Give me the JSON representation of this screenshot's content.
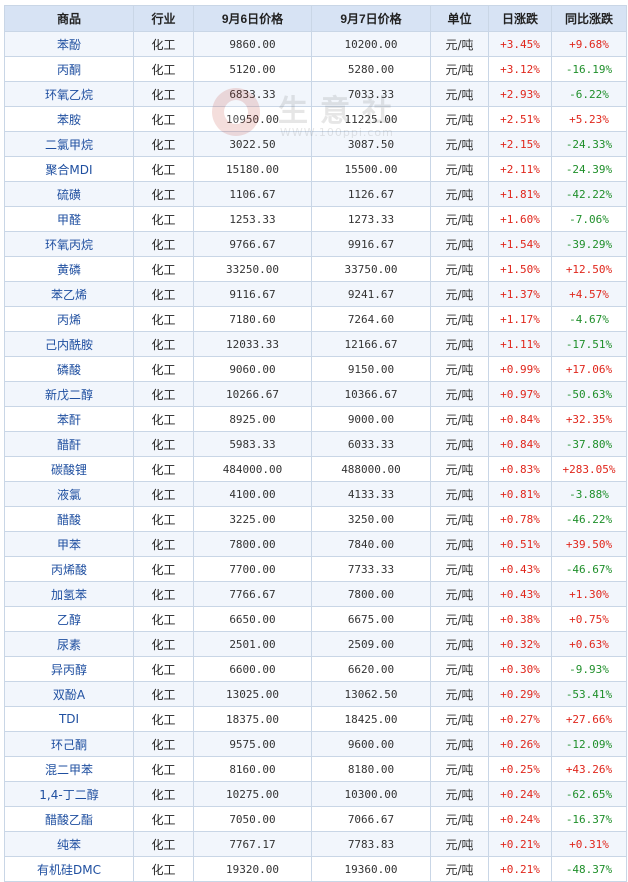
{
  "header": {
    "product": "商品",
    "industry": "行业",
    "price_sep6": "9月6日价格",
    "price_sep7": "9月7日价格",
    "unit": "单位",
    "daily_change": "日涨跌",
    "yoy_change": "同比涨跌"
  },
  "watermark": {
    "text": "生意社",
    "url": "WWW.100ppi.com"
  },
  "colors": {
    "rise": "#e0261b",
    "fall": "#1f8f2a",
    "name": "#1f4fa0"
  },
  "rows": [
    {
      "name": "苯酚",
      "industry": "化工",
      "p6": "9860.00",
      "p7": "10200.00",
      "unit": "元/吨",
      "day": "+3.45%",
      "yoy": "+9.68%"
    },
    {
      "name": "丙酮",
      "industry": "化工",
      "p6": "5120.00",
      "p7": "5280.00",
      "unit": "元/吨",
      "day": "+3.12%",
      "yoy": "-16.19%"
    },
    {
      "name": "环氧乙烷",
      "industry": "化工",
      "p6": "6833.33",
      "p7": "7033.33",
      "unit": "元/吨",
      "day": "+2.93%",
      "yoy": "-6.22%"
    },
    {
      "name": "苯胺",
      "industry": "化工",
      "p6": "10950.00",
      "p7": "11225.00",
      "unit": "元/吨",
      "day": "+2.51%",
      "yoy": "+5.23%"
    },
    {
      "name": "二氯甲烷",
      "industry": "化工",
      "p6": "3022.50",
      "p7": "3087.50",
      "unit": "元/吨",
      "day": "+2.15%",
      "yoy": "-24.33%"
    },
    {
      "name": "聚合MDI",
      "industry": "化工",
      "p6": "15180.00",
      "p7": "15500.00",
      "unit": "元/吨",
      "day": "+2.11%",
      "yoy": "-24.39%"
    },
    {
      "name": "硫磺",
      "industry": "化工",
      "p6": "1106.67",
      "p7": "1126.67",
      "unit": "元/吨",
      "day": "+1.81%",
      "yoy": "-42.22%"
    },
    {
      "name": "甲醛",
      "industry": "化工",
      "p6": "1253.33",
      "p7": "1273.33",
      "unit": "元/吨",
      "day": "+1.60%",
      "yoy": "-7.06%"
    },
    {
      "name": "环氧丙烷",
      "industry": "化工",
      "p6": "9766.67",
      "p7": "9916.67",
      "unit": "元/吨",
      "day": "+1.54%",
      "yoy": "-39.29%"
    },
    {
      "name": "黄磷",
      "industry": "化工",
      "p6": "33250.00",
      "p7": "33750.00",
      "unit": "元/吨",
      "day": "+1.50%",
      "yoy": "+12.50%"
    },
    {
      "name": "苯乙烯",
      "industry": "化工",
      "p6": "9116.67",
      "p7": "9241.67",
      "unit": "元/吨",
      "day": "+1.37%",
      "yoy": "+4.57%"
    },
    {
      "name": "丙烯",
      "industry": "化工",
      "p6": "7180.60",
      "p7": "7264.60",
      "unit": "元/吨",
      "day": "+1.17%",
      "yoy": "-4.67%"
    },
    {
      "name": "己内酰胺",
      "industry": "化工",
      "p6": "12033.33",
      "p7": "12166.67",
      "unit": "元/吨",
      "day": "+1.11%",
      "yoy": "-17.51%"
    },
    {
      "name": "磷酸",
      "industry": "化工",
      "p6": "9060.00",
      "p7": "9150.00",
      "unit": "元/吨",
      "day": "+0.99%",
      "yoy": "+17.06%"
    },
    {
      "name": "新戊二醇",
      "industry": "化工",
      "p6": "10266.67",
      "p7": "10366.67",
      "unit": "元/吨",
      "day": "+0.97%",
      "yoy": "-50.63%"
    },
    {
      "name": "苯酐",
      "industry": "化工",
      "p6": "8925.00",
      "p7": "9000.00",
      "unit": "元/吨",
      "day": "+0.84%",
      "yoy": "+32.35%"
    },
    {
      "name": "醋酐",
      "industry": "化工",
      "p6": "5983.33",
      "p7": "6033.33",
      "unit": "元/吨",
      "day": "+0.84%",
      "yoy": "-37.80%"
    },
    {
      "name": "碳酸锂",
      "industry": "化工",
      "p6": "484000.00",
      "p7": "488000.00",
      "unit": "元/吨",
      "day": "+0.83%",
      "yoy": "+283.05%"
    },
    {
      "name": "液氯",
      "industry": "化工",
      "p6": "4100.00",
      "p7": "4133.33",
      "unit": "元/吨",
      "day": "+0.81%",
      "yoy": "-3.88%"
    },
    {
      "name": "醋酸",
      "industry": "化工",
      "p6": "3225.00",
      "p7": "3250.00",
      "unit": "元/吨",
      "day": "+0.78%",
      "yoy": "-46.22%"
    },
    {
      "name": "甲苯",
      "industry": "化工",
      "p6": "7800.00",
      "p7": "7840.00",
      "unit": "元/吨",
      "day": "+0.51%",
      "yoy": "+39.50%"
    },
    {
      "name": "丙烯酸",
      "industry": "化工",
      "p6": "7700.00",
      "p7": "7733.33",
      "unit": "元/吨",
      "day": "+0.43%",
      "yoy": "-46.67%"
    },
    {
      "name": "加氢苯",
      "industry": "化工",
      "p6": "7766.67",
      "p7": "7800.00",
      "unit": "元/吨",
      "day": "+0.43%",
      "yoy": "+1.30%"
    },
    {
      "name": "乙醇",
      "industry": "化工",
      "p6": "6650.00",
      "p7": "6675.00",
      "unit": "元/吨",
      "day": "+0.38%",
      "yoy": "+0.75%"
    },
    {
      "name": "尿素",
      "industry": "化工",
      "p6": "2501.00",
      "p7": "2509.00",
      "unit": "元/吨",
      "day": "+0.32%",
      "yoy": "+0.63%"
    },
    {
      "name": "异丙醇",
      "industry": "化工",
      "p6": "6600.00",
      "p7": "6620.00",
      "unit": "元/吨",
      "day": "+0.30%",
      "yoy": "-9.93%"
    },
    {
      "name": "双酚A",
      "industry": "化工",
      "p6": "13025.00",
      "p7": "13062.50",
      "unit": "元/吨",
      "day": "+0.29%",
      "yoy": "-53.41%"
    },
    {
      "name": "TDI",
      "industry": "化工",
      "p6": "18375.00",
      "p7": "18425.00",
      "unit": "元/吨",
      "day": "+0.27%",
      "yoy": "+27.66%"
    },
    {
      "name": "环己酮",
      "industry": "化工",
      "p6": "9575.00",
      "p7": "9600.00",
      "unit": "元/吨",
      "day": "+0.26%",
      "yoy": "-12.09%"
    },
    {
      "name": "混二甲苯",
      "industry": "化工",
      "p6": "8160.00",
      "p7": "8180.00",
      "unit": "元/吨",
      "day": "+0.25%",
      "yoy": "+43.26%"
    },
    {
      "name": "1,4-丁二醇",
      "industry": "化工",
      "p6": "10275.00",
      "p7": "10300.00",
      "unit": "元/吨",
      "day": "+0.24%",
      "yoy": "-62.65%"
    },
    {
      "name": "醋酸乙酯",
      "industry": "化工",
      "p6": "7050.00",
      "p7": "7066.67",
      "unit": "元/吨",
      "day": "+0.24%",
      "yoy": "-16.37%"
    },
    {
      "name": "纯苯",
      "industry": "化工",
      "p6": "7767.17",
      "p7": "7783.83",
      "unit": "元/吨",
      "day": "+0.21%",
      "yoy": "+0.31%"
    },
    {
      "name": "有机硅DMC",
      "industry": "化工",
      "p6": "19320.00",
      "p7": "19360.00",
      "unit": "元/吨",
      "day": "+0.21%",
      "yoy": "-48.37%"
    }
  ]
}
